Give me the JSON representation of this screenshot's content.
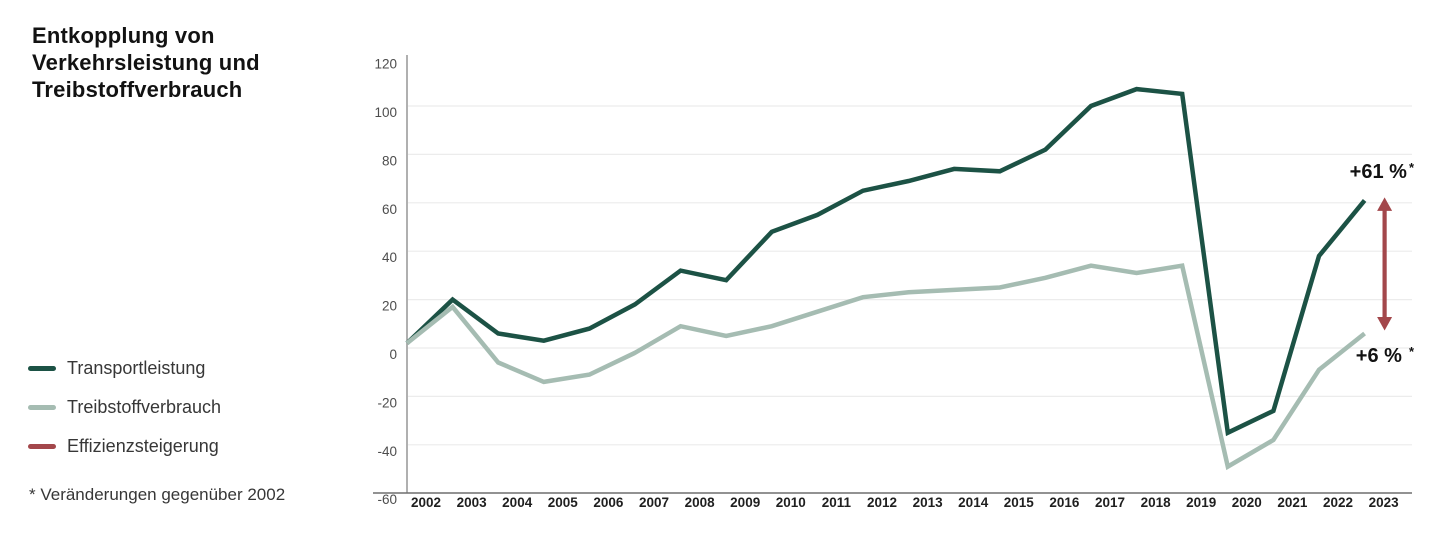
{
  "title": "Entkopplung von\nVerkehrsleistung und\nTreibstoffverbrauch",
  "legend": {
    "items": [
      {
        "label": "Transportleistung",
        "color": "#1c5245"
      },
      {
        "label": "Treibstoffverbrauch",
        "color": "#a5bcb2"
      },
      {
        "label": "Effizienzsteigerung",
        "color": "#a3474b"
      }
    ]
  },
  "footnote": "* Veränderungen gegenüber 2002",
  "callouts": {
    "transport": {
      "value": "+61 %",
      "star": "*"
    },
    "fuel": {
      "value": "+6 %",
      "star": "*"
    }
  },
  "colors": {
    "transport_line": "#1c5245",
    "fuel_line": "#a5bcb2",
    "efficiency_arrow": "#a3474b",
    "gridline": "#ececec",
    "y_axis": "#8f8f8f",
    "x_axis": "#6f6f6f",
    "y_tick_text": "#4d4d4d",
    "x_tick_text": "#1f1f1f"
  },
  "chart_data": {
    "type": "line",
    "title": "Entkopplung von Verkehrsleistung und Treibstoffverbrauch",
    "x": [
      2002,
      2003,
      2004,
      2005,
      2006,
      2007,
      2008,
      2009,
      2010,
      2011,
      2012,
      2013,
      2014,
      2015,
      2016,
      2017,
      2018,
      2019,
      2020,
      2021,
      2022,
      2023
    ],
    "series": [
      {
        "name": "Transportleistung",
        "color": "#1c5245",
        "values": [
          2,
          20,
          6,
          3,
          8,
          18,
          32,
          28,
          48,
          55,
          65,
          69,
          74,
          73,
          82,
          100,
          107,
          105,
          -35,
          -26,
          38,
          61
        ]
      },
      {
        "name": "Treibstoffverbrauch",
        "color": "#a5bcb2",
        "values": [
          2,
          17,
          -6,
          -14,
          -11,
          -2,
          9,
          5,
          9,
          15,
          21,
          23,
          24,
          25,
          29,
          34,
          31,
          34,
          -49,
          -38,
          -9,
          6
        ]
      }
    ],
    "ylim": [
      -60,
      120
    ],
    "yticks": [
      120,
      100,
      80,
      60,
      40,
      20,
      0,
      -20,
      -40,
      -60
    ],
    "grid": true,
    "legend_position": "left",
    "annotations": [
      {
        "type": "label",
        "text": "+61 %*",
        "series": "Transportleistung",
        "x": 2023,
        "value": 61
      },
      {
        "type": "label",
        "text": "+6 %*",
        "series": "Treibstoffverbrauch",
        "x": 2023,
        "value": 6
      },
      {
        "type": "arrow",
        "name": "Effizienzsteigerung",
        "color": "#a3474b",
        "x": 2023,
        "from": 61,
        "to": 6
      }
    ]
  }
}
